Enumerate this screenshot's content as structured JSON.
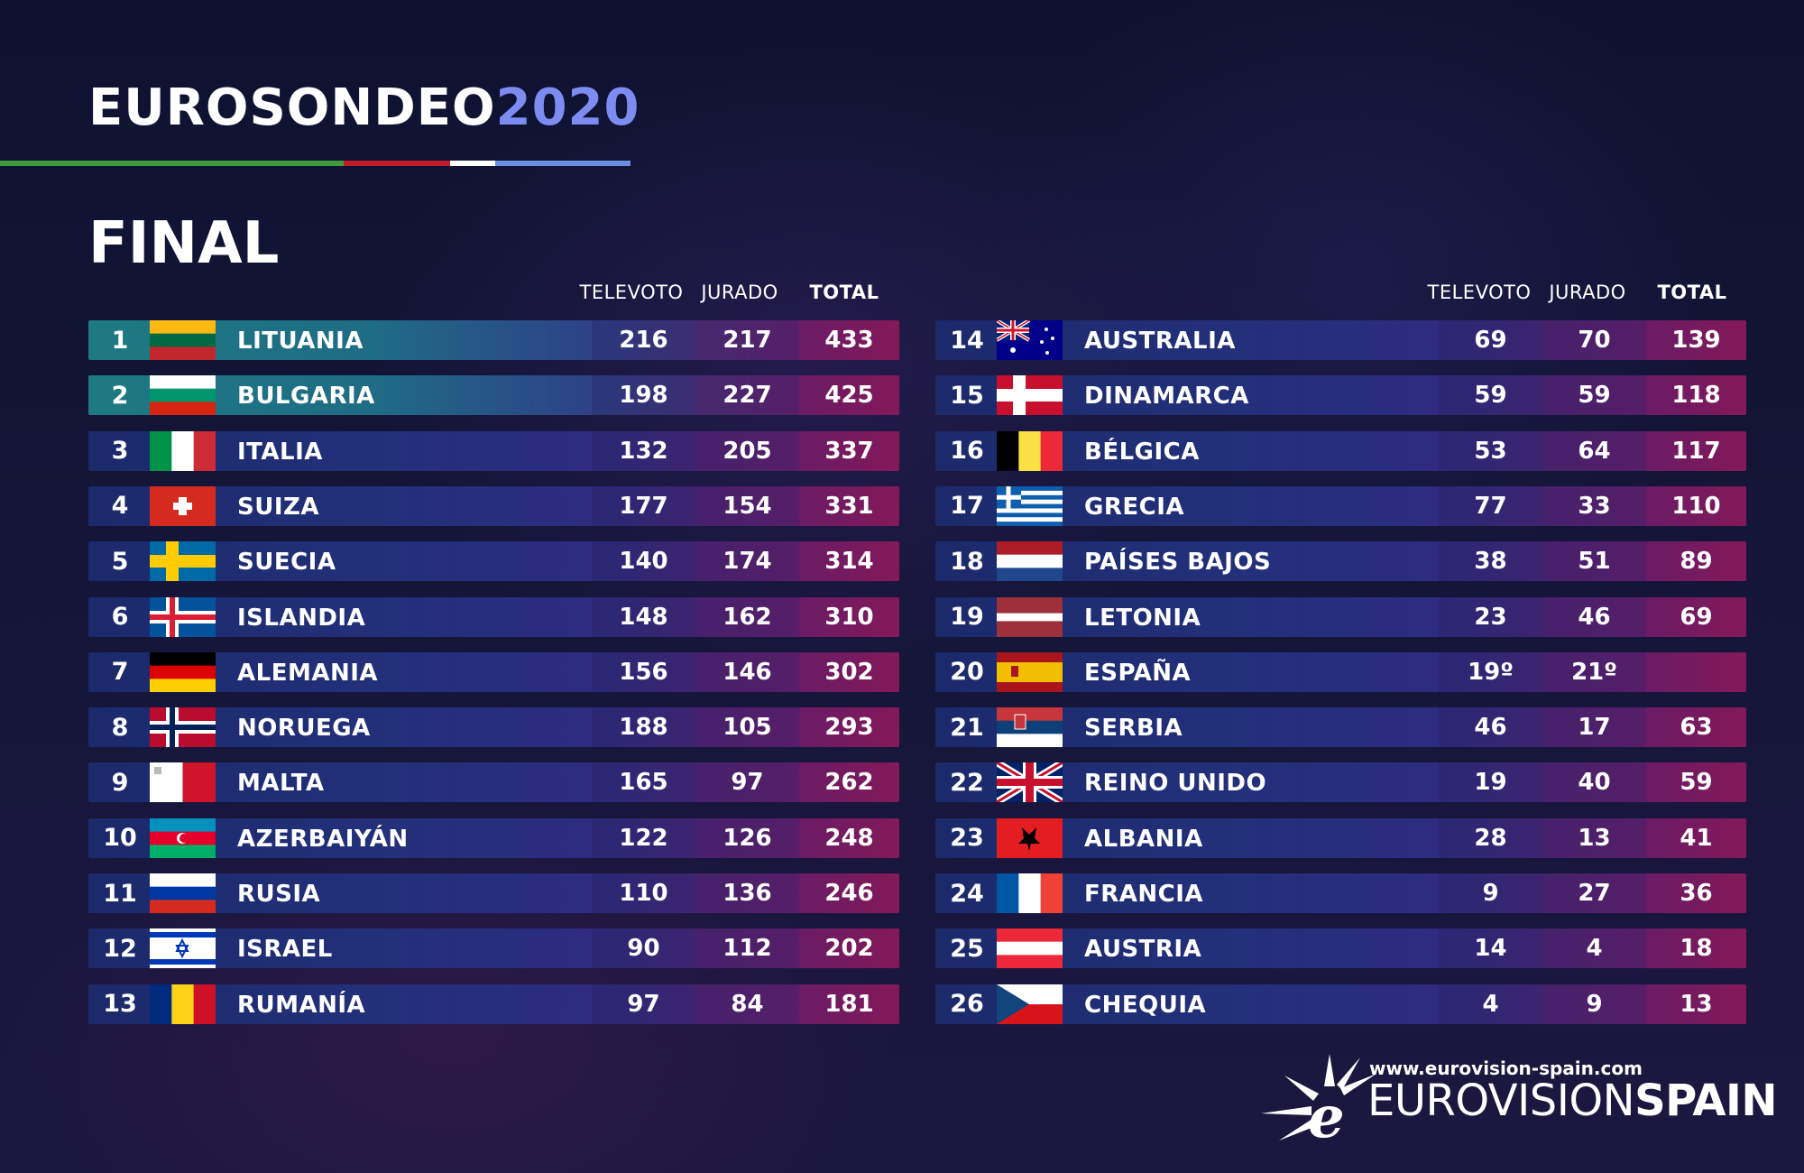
{
  "header": {
    "title_main": "EUROSONDEO",
    "title_year": "2020",
    "subtitle": "FINAL",
    "stripe_colors": [
      "#3f9a3b",
      "#c01b2a",
      "#ffffff",
      "#6a8ee0"
    ]
  },
  "columns": {
    "televoto": "TELEVOTO",
    "jurado": "JURADO",
    "total": "TOTAL"
  },
  "rows_left": [
    {
      "rank": "1",
      "country": "LITUANIA",
      "flag": "lithuania-flag-icon",
      "televoto": "216",
      "jurado": "217",
      "total": "433"
    },
    {
      "rank": "2",
      "country": "BULGARIA",
      "flag": "bulgaria-flag-icon",
      "televoto": "198",
      "jurado": "227",
      "total": "425"
    },
    {
      "rank": "3",
      "country": "ITALIA",
      "flag": "italy-flag-icon",
      "televoto": "132",
      "jurado": "205",
      "total": "337"
    },
    {
      "rank": "4",
      "country": "SUIZA",
      "flag": "switzerland-flag-icon",
      "televoto": "177",
      "jurado": "154",
      "total": "331"
    },
    {
      "rank": "5",
      "country": "SUECIA",
      "flag": "sweden-flag-icon",
      "televoto": "140",
      "jurado": "174",
      "total": "314"
    },
    {
      "rank": "6",
      "country": "ISLANDIA",
      "flag": "iceland-flag-icon",
      "televoto": "148",
      "jurado": "162",
      "total": "310"
    },
    {
      "rank": "7",
      "country": "ALEMANIA",
      "flag": "germany-flag-icon",
      "televoto": "156",
      "jurado": "146",
      "total": "302"
    },
    {
      "rank": "8",
      "country": "NORUEGA",
      "flag": "norway-flag-icon",
      "televoto": "188",
      "jurado": "105",
      "total": "293"
    },
    {
      "rank": "9",
      "country": "MALTA",
      "flag": "malta-flag-icon",
      "televoto": "165",
      "jurado": "97",
      "total": "262"
    },
    {
      "rank": "10",
      "country": "AZERBAIYÁN",
      "flag": "azerbaijan-flag-icon",
      "televoto": "122",
      "jurado": "126",
      "total": "248"
    },
    {
      "rank": "11",
      "country": "RUSIA",
      "flag": "russia-flag-icon",
      "televoto": "110",
      "jurado": "136",
      "total": "246"
    },
    {
      "rank": "12",
      "country": "ISRAEL",
      "flag": "israel-flag-icon",
      "televoto": "90",
      "jurado": "112",
      "total": "202"
    },
    {
      "rank": "13",
      "country": "RUMANÍA",
      "flag": "romania-flag-icon",
      "televoto": "97",
      "jurado": "84",
      "total": "181"
    }
  ],
  "rows_right": [
    {
      "rank": "14",
      "country": "AUSTRALIA",
      "flag": "australia-flag-icon",
      "televoto": "69",
      "jurado": "70",
      "total": "139"
    },
    {
      "rank": "15",
      "country": "DINAMARCA",
      "flag": "denmark-flag-icon",
      "televoto": "59",
      "jurado": "59",
      "total": "118"
    },
    {
      "rank": "16",
      "country": "BÉLGICA",
      "flag": "belgium-flag-icon",
      "televoto": "53",
      "jurado": "64",
      "total": "117"
    },
    {
      "rank": "17",
      "country": "GRECIA",
      "flag": "greece-flag-icon",
      "televoto": "77",
      "jurado": "33",
      "total": "110"
    },
    {
      "rank": "18",
      "country": "PAÍSES BAJOS",
      "flag": "netherlands-flag-icon",
      "televoto": "38",
      "jurado": "51",
      "total": "89"
    },
    {
      "rank": "19",
      "country": "LETONIA",
      "flag": "latvia-flag-icon",
      "televoto": "23",
      "jurado": "46",
      "total": "69"
    },
    {
      "rank": "20",
      "country": "ESPAÑA",
      "flag": "spain-flag-icon",
      "televoto": "19º",
      "jurado": "21º",
      "total": ""
    },
    {
      "rank": "21",
      "country": "SERBIA",
      "flag": "serbia-flag-icon",
      "televoto": "46",
      "jurado": "17",
      "total": "63"
    },
    {
      "rank": "22",
      "country": "REINO UNIDO",
      "flag": "united-kingdom-flag-icon",
      "televoto": "19",
      "jurado": "40",
      "total": "59"
    },
    {
      "rank": "23",
      "country": "ALBANIA",
      "flag": "albania-flag-icon",
      "televoto": "28",
      "jurado": "13",
      "total": "41"
    },
    {
      "rank": "24",
      "country": "FRANCIA",
      "flag": "france-flag-icon",
      "televoto": "9",
      "jurado": "27",
      "total": "36"
    },
    {
      "rank": "25",
      "country": "AUSTRIA",
      "flag": "austria-flag-icon",
      "televoto": "14",
      "jurado": "4",
      "total": "18"
    },
    {
      "rank": "26",
      "country": "CHEQUIA",
      "flag": "czechia-flag-icon",
      "televoto": "4",
      "jurado": "9",
      "total": "13"
    }
  ],
  "footer": {
    "url": "www.eurovision-spain.com",
    "brand_light": "EUROVISION",
    "brand_bold": "SPAIN",
    "logo": "eurovision-spain-star-logo-icon"
  }
}
